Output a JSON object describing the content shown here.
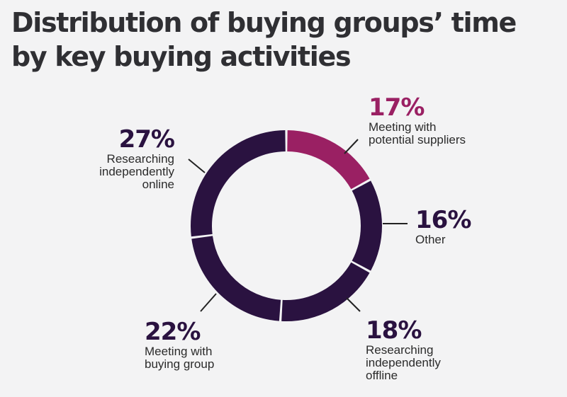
{
  "title_lines": [
    "Distribution of buying groups’ time",
    "by key buying activities"
  ],
  "chart_data": {
    "type": "pie",
    "variant": "donut",
    "title": "Distribution of buying groups’ time by key buying activities",
    "start_angle_deg": 0,
    "direction": "clockwise",
    "slices": [
      {
        "value": 17,
        "pct_label": "17%",
        "label": "Meeting with\npotential suppliers",
        "color": "#9a2063"
      },
      {
        "value": 16,
        "pct_label": "16%",
        "label": "Other",
        "color": "#2a1240"
      },
      {
        "value": 18,
        "pct_label": "18%",
        "label": "Researching\nindependently\noffline",
        "color": "#2a1240"
      },
      {
        "value": 22,
        "pct_label": "22%",
        "label": "Meeting with\nbuying group",
        "color": "#2a1240"
      },
      {
        "value": 27,
        "pct_label": "27%",
        "label": "Researching\nindependently\nonline",
        "color": "#2a1240"
      }
    ]
  }
}
